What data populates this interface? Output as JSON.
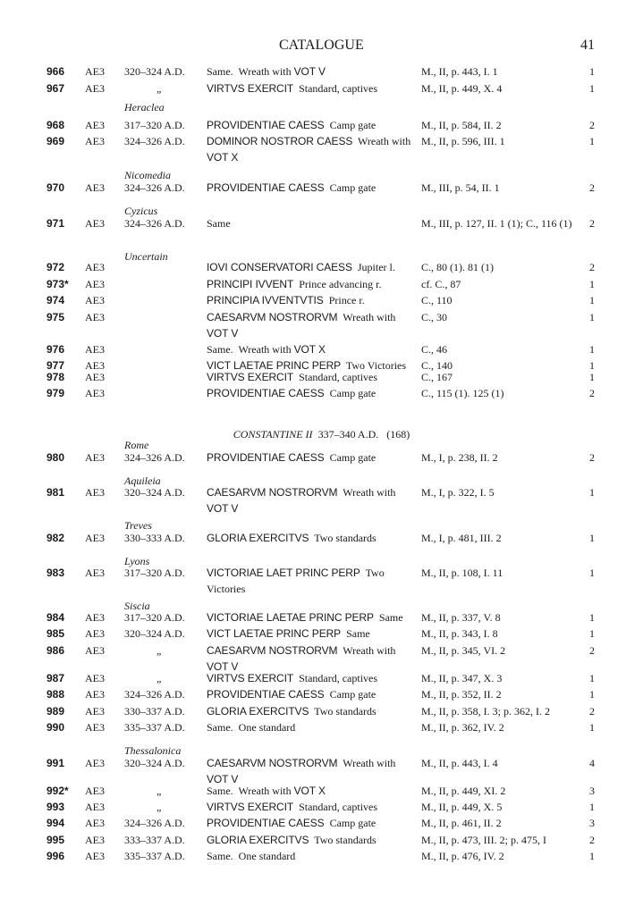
{
  "header": {
    "title": "CATALOGUE",
    "page_number": "41"
  },
  "entries": [
    {
      "kind": "row",
      "num": "966",
      "type": "AE3",
      "date": "320–324 A.D.",
      "desc": [
        {
          "t": "Same.  Wreath with "
        },
        {
          "t": "VOT V",
          "leg": true
        }
      ],
      "ref": "M., II, p. 443, I. 1",
      "qty": "1"
    },
    {
      "kind": "row",
      "num": "967",
      "type": "AE3",
      "date": "„",
      "desc": [
        {
          "t": "VIRTVS EXERCIT",
          "leg": true
        },
        {
          "t": "  Standard, captives"
        }
      ],
      "ref": "M., II, p. 449, X. 4",
      "qty": "1"
    },
    {
      "kind": "mint",
      "label": "Heraclea"
    },
    {
      "kind": "row",
      "num": "968",
      "type": "AE3",
      "date": "317–320 A.D.",
      "desc": [
        {
          "t": "PROVIDENTIAE CAESS",
          "leg": true
        },
        {
          "t": "  Camp gate"
        }
      ],
      "ref": "M., II, p. 584, II. 2",
      "qty": "2"
    },
    {
      "kind": "row",
      "num": "969",
      "type": "AE3",
      "date": "324–326 A.D.",
      "desc": [
        {
          "t": "DOMINOR NOSTROR CAESS",
          "leg": true
        },
        {
          "t": "  Wreath with "
        },
        {
          "t": "VOT X",
          "leg": true
        }
      ],
      "ref": "M., II, p. 596, III. 1",
      "qty": "1"
    },
    {
      "kind": "mint",
      "label": "Nicomedia"
    },
    {
      "kind": "row",
      "num": "970",
      "type": "AE3",
      "date": "324–326 A.D.",
      "desc": [
        {
          "t": "PROVIDENTIAE CAESS",
          "leg": true
        },
        {
          "t": "  Camp gate"
        }
      ],
      "ref": "M., III, p. 54, II. 1",
      "qty": "2"
    },
    {
      "kind": "mint",
      "label": "Cyzicus"
    },
    {
      "kind": "row",
      "num": "971",
      "type": "AE3",
      "date": "324–326 A.D.",
      "desc": [
        {
          "t": "Same"
        }
      ],
      "ref": "M., III, p. 127, II. 1 (1); C., 116 (1)",
      "qty": "2"
    },
    {
      "kind": "mint",
      "label": "Uncertain"
    },
    {
      "kind": "row",
      "num": "972",
      "type": "AE3",
      "date": "",
      "desc": [
        {
          "t": "IOVI CONSERVATORI CAESS",
          "leg": true
        },
        {
          "t": "  Jupiter l."
        }
      ],
      "ref": "C., 80 (1). 81 (1)",
      "qty": "2"
    },
    {
      "kind": "row",
      "num": "973*",
      "type": "AE3",
      "date": "",
      "desc": [
        {
          "t": "PRINCIPI IVVENT",
          "leg": true
        },
        {
          "t": "  Prince advancing r."
        }
      ],
      "ref": "cf. C., 87",
      "qty": "1"
    },
    {
      "kind": "row",
      "num": "974",
      "type": "AE3",
      "date": "",
      "desc": [
        {
          "t": "PRINCIPIA IVVENTVTIS",
          "leg": true
        },
        {
          "t": "  Prince r."
        }
      ],
      "ref": "C., 110",
      "qty": "1"
    },
    {
      "kind": "row",
      "num": "975",
      "type": "AE3",
      "date": "",
      "desc": [
        {
          "t": "CAESARVM NOSTRORVM",
          "leg": true
        },
        {
          "t": "  Wreath with "
        },
        {
          "t": "VOT V",
          "leg": true
        }
      ],
      "ref": "C., 30",
      "qty": "1"
    },
    {
      "kind": "row",
      "num": "976",
      "type": "AE3",
      "date": "",
      "desc": [
        {
          "t": "Same.  Wreath with "
        },
        {
          "t": "VOT X",
          "leg": true
        }
      ],
      "ref": "C., 46",
      "qty": "1"
    },
    {
      "kind": "row",
      "num": "977",
      "type": "AE3",
      "date": "",
      "desc": [
        {
          "t": "VICT LAETAE PRINC PERP",
          "leg": true
        },
        {
          "t": "  Two Victories"
        }
      ],
      "ref": "C., 140",
      "qty": "1"
    },
    {
      "kind": "row",
      "num": "978",
      "type": "AE3",
      "date": "",
      "desc": [
        {
          "t": "VIRTVS EXERCIT",
          "leg": true
        },
        {
          "t": "  Standard, captives"
        }
      ],
      "ref": "C., 167",
      "qty": "1"
    },
    {
      "kind": "row",
      "num": "979",
      "type": "AE3",
      "date": "",
      "desc": [
        {
          "t": "PROVIDENTIAE CAESS",
          "leg": true
        },
        {
          "t": "  Camp gate"
        }
      ],
      "ref": "C., 115 (1). 125 (1)",
      "qty": "2"
    },
    {
      "kind": "section",
      "name": "CONSTANTINE II",
      "dates": "337–340 A.D.",
      "count": "(168)"
    },
    {
      "kind": "mint",
      "label": "Rome"
    },
    {
      "kind": "row",
      "num": "980",
      "type": "AE3",
      "date": "324–326 A.D.",
      "desc": [
        {
          "t": "PROVIDENTIAE CAESS",
          "leg": true
        },
        {
          "t": "  Camp gate"
        }
      ],
      "ref": "M., I, p. 238, II. 2",
      "qty": "2"
    },
    {
      "kind": "mint",
      "label": "Aquileia"
    },
    {
      "kind": "row",
      "num": "981",
      "type": "AE3",
      "date": "320–324 A.D.",
      "desc": [
        {
          "t": "CAESARVM NOSTRORVM",
          "leg": true
        },
        {
          "t": "  Wreath with "
        },
        {
          "t": "VOT V",
          "leg": true
        }
      ],
      "ref": "M., I, p. 322, I. 5",
      "qty": "1"
    },
    {
      "kind": "mint",
      "label": "Treves"
    },
    {
      "kind": "row",
      "num": "982",
      "type": "AE3",
      "date": "330–333 A.D.",
      "desc": [
        {
          "t": "GLORIA EXERCITVS",
          "leg": true
        },
        {
          "t": "  Two standards"
        }
      ],
      "ref": "M., I, p. 481, III. 2",
      "qty": "1"
    },
    {
      "kind": "mint",
      "label": "Lyons"
    },
    {
      "kind": "row",
      "num": "983",
      "type": "AE3",
      "date": "317–320 A.D.",
      "desc": [
        {
          "t": "VICTORIAE LAET PRINC PERP",
          "leg": true
        },
        {
          "t": "  Two Victories"
        }
      ],
      "ref": "M., II, p. 108, I. 11",
      "qty": "1"
    },
    {
      "kind": "mint",
      "label": "Siscia"
    },
    {
      "kind": "row",
      "num": "984",
      "type": "AE3",
      "date": "317–320 A.D.",
      "desc": [
        {
          "t": "VICTORIAE LAETAE PRINC PERP",
          "leg": true
        },
        {
          "t": "  Same"
        }
      ],
      "ref": "M., II, p. 337, V. 8",
      "qty": "1"
    },
    {
      "kind": "row",
      "num": "985",
      "type": "AE3",
      "date": "320–324 A.D.",
      "desc": [
        {
          "t": "VICT LAETAE PRINC PERP",
          "leg": true
        },
        {
          "t": "  Same"
        }
      ],
      "ref": "M., II, p. 343, I. 8",
      "qty": "1"
    },
    {
      "kind": "row",
      "num": "986",
      "type": "AE3",
      "date": "„",
      "desc": [
        {
          "t": "CAESARVM NOSTRORVM",
          "leg": true
        },
        {
          "t": "  Wreath with "
        },
        {
          "t": "VOT V",
          "leg": true
        }
      ],
      "ref": "M., II, p. 345, VI. 2",
      "qty": "2"
    },
    {
      "kind": "row",
      "num": "987",
      "type": "AE3",
      "date": "„",
      "desc": [
        {
          "t": "VIRTVS EXERCIT",
          "leg": true
        },
        {
          "t": "  Standard, captives"
        }
      ],
      "ref": "M., II, p. 347, X. 3",
      "qty": "1"
    },
    {
      "kind": "row",
      "num": "988",
      "type": "AE3",
      "date": "324–326 A.D.",
      "desc": [
        {
          "t": "PROVIDENTIAE CAESS",
          "leg": true
        },
        {
          "t": "  Camp gate"
        }
      ],
      "ref": "M., II, p. 352, II. 2",
      "qty": "1"
    },
    {
      "kind": "row",
      "num": "989",
      "type": "AE3",
      "date": "330–337 A.D.",
      "desc": [
        {
          "t": "GLORIA EXERCITVS",
          "leg": true
        },
        {
          "t": "  Two standards"
        }
      ],
      "ref": "M., II, p. 358, I. 3; p. 362, I. 2",
      "qty": "2"
    },
    {
      "kind": "row",
      "num": "990",
      "type": "AE3",
      "date": "335–337 A.D.",
      "desc": [
        {
          "t": "Same.  One standard"
        }
      ],
      "ref": "M., II, p. 362, IV. 2",
      "qty": "1"
    },
    {
      "kind": "mint",
      "label": "Thessalonica"
    },
    {
      "kind": "row",
      "num": "991",
      "type": "AE3",
      "date": "320–324 A.D.",
      "desc": [
        {
          "t": "CAESARVM NOSTRORVM",
          "leg": true
        },
        {
          "t": "  Wreath with "
        },
        {
          "t": "VOT V",
          "leg": true
        }
      ],
      "ref": "M., II, p. 443, I. 4",
      "qty": "4"
    },
    {
      "kind": "row",
      "num": "992*",
      "type": "AE3",
      "date": "„",
      "desc": [
        {
          "t": "Same.  Wreath with "
        },
        {
          "t": "VOT X",
          "leg": true
        }
      ],
      "ref": "M., II, p. 449, XI. 2",
      "qty": "3"
    },
    {
      "kind": "row",
      "num": "993",
      "type": "AE3",
      "date": "„",
      "desc": [
        {
          "t": "VIRTVS EXERCIT",
          "leg": true
        },
        {
          "t": "  Standard, captives"
        }
      ],
      "ref": "M., II, p. 449, X. 5",
      "qty": "1"
    },
    {
      "kind": "row",
      "num": "994",
      "type": "AE3",
      "date": "324–326 A.D.",
      "desc": [
        {
          "t": "PROVIDENTIAE CAESS",
          "leg": true
        },
        {
          "t": "  Camp gate"
        }
      ],
      "ref": "M., II, p. 461, II. 2",
      "qty": "3"
    },
    {
      "kind": "row",
      "num": "995",
      "type": "AE3",
      "date": "333–337 A.D.",
      "desc": [
        {
          "t": "GLORIA EXERCITVS",
          "leg": true
        },
        {
          "t": "  Two standards"
        }
      ],
      "ref": "M., II, p. 473, III. 2; p. 475, I",
      "qty": "2"
    },
    {
      "kind": "row",
      "num": "996",
      "type": "AE3",
      "date": "335–337 A.D.",
      "desc": [
        {
          "t": "Same.  One standard"
        }
      ],
      "ref": "M., II, p. 476, IV. 2",
      "qty": "1"
    }
  ]
}
